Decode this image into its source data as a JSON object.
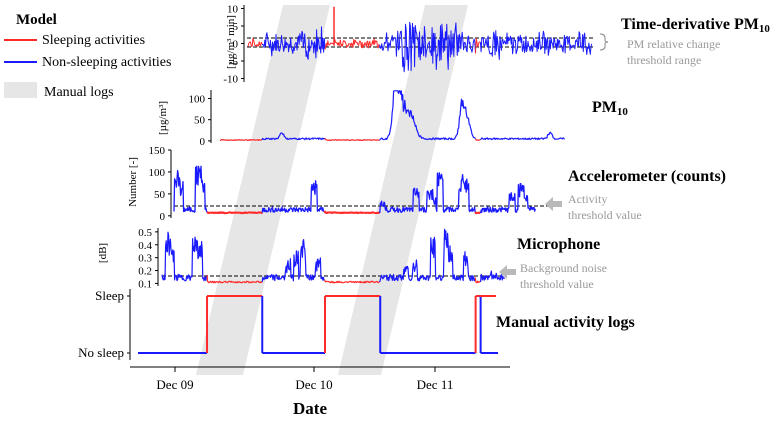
{
  "legend": {
    "title": "Model",
    "items": [
      {
        "label": "Sleeping activities",
        "color": "#ff2a2a"
      },
      {
        "label": "Non-sleeping activities",
        "color": "#1a1aff"
      },
      {
        "label": "Manual logs",
        "color": "#e6e6e6"
      }
    ]
  },
  "colors": {
    "sleep": "#ff2a2a",
    "nonsleep": "#1a1aff",
    "band": "#e6e6e6",
    "note": "#9a9a9a"
  },
  "chart_data": [
    {
      "id": "pm_derivative",
      "type": "line",
      "title": "Time-derivative PM",
      "title_sub": "10",
      "ylabel": "[µg/m³ min]",
      "yticks": [
        10,
        5,
        0,
        -5,
        -10
      ],
      "ylim": [
        -11,
        11
      ],
      "threshold": [
        -1.5,
        1.5
      ],
      "annotation": {
        "line1": "PM relative change",
        "line2": "threshold range"
      }
    },
    {
      "id": "pm10",
      "type": "line",
      "title": "PM",
      "title_sub": "10",
      "ylabel": "[µg/m³]",
      "yticks": [
        100,
        50,
        0
      ],
      "ylim": [
        -5,
        120
      ]
    },
    {
      "id": "accelerometer",
      "type": "line",
      "title": "Accelerometer (counts)",
      "ylabel": "Number [-]",
      "yticks": [
        150,
        100,
        50,
        0
      ],
      "ylim": [
        -5,
        150
      ],
      "threshold": 20,
      "annotation": {
        "line1": "Activity",
        "line2": "threshold value"
      }
    },
    {
      "id": "microphone",
      "type": "line",
      "title": "Microphone",
      "ylabel": "[dB]",
      "yticks": [
        "0.5",
        "0.4",
        "0.3",
        "0.2",
        "0.1"
      ],
      "ylim": [
        0.08,
        0.53
      ],
      "threshold": 0.14,
      "annotation": {
        "line1": "Background noise",
        "line2": "threshold value"
      }
    },
    {
      "id": "manual_logs",
      "type": "line",
      "title": "Manual activity logs",
      "yticks": [
        "Sleep",
        "No sleep"
      ],
      "xlabel": "Date",
      "xticks": [
        "Dec 09",
        "Dec 10",
        "Dec 11"
      ],
      "x_tick_days": [
        0,
        1,
        2
      ],
      "xlim_days": [
        -0.35,
        2.55
      ],
      "sleep_periods_days": [
        [
          0.08,
          0.52
        ],
        [
          1.02,
          1.46
        ],
        [
          2.22,
          2.26
        ]
      ]
    }
  ]
}
